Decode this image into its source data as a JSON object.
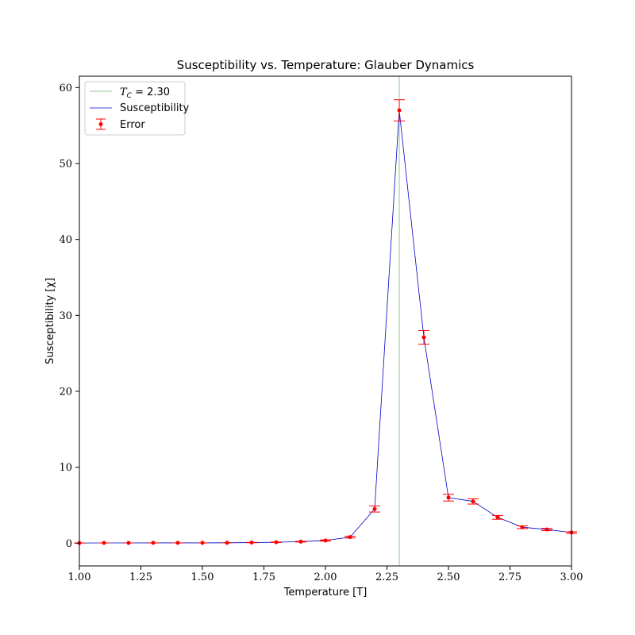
{
  "chart_data": {
    "type": "line",
    "title": "Susceptibility vs. Temperature: Glauber Dynamics",
    "xlabel": "Temperature [T]",
    "ylabel": "Susceptibility [χ]",
    "xlim": [
      1.0,
      3.0
    ],
    "ylim": [
      -3,
      61.5
    ],
    "xticks": [
      1.0,
      1.25,
      1.5,
      1.75,
      2.0,
      2.25,
      2.5,
      2.75,
      3.0
    ],
    "xtick_labels": [
      "1.00",
      "1.25",
      "1.50",
      "1.75",
      "2.00",
      "2.25",
      "2.50",
      "2.75",
      "3.00"
    ],
    "yticks": [
      0,
      10,
      20,
      30,
      40,
      50,
      60
    ],
    "ytick_labels": [
      "0",
      "10",
      "20",
      "30",
      "40",
      "50",
      "60"
    ],
    "grid": false,
    "legend_placement": "top-left",
    "legend": {
      "tc_prefix": "T",
      "tc_subscript": "C",
      "tc_value_text": " = 2.30",
      "susceptibility": "Susceptibility",
      "error": "Error"
    },
    "critical_temperature": 2.3,
    "x": [
      1.0,
      1.1,
      1.2,
      1.3,
      1.4,
      1.5,
      1.6,
      1.7,
      1.8,
      1.9,
      2.0,
      2.1,
      2.2,
      2.3,
      2.4,
      2.5,
      2.6,
      2.7,
      2.8,
      2.9,
      3.0
    ],
    "series": [
      {
        "name": "Susceptibility",
        "values": [
          0.02,
          0.03,
          0.03,
          0.04,
          0.04,
          0.04,
          0.05,
          0.08,
          0.12,
          0.2,
          0.35,
          0.8,
          4.5,
          57.0,
          27.1,
          6.0,
          5.5,
          3.4,
          2.1,
          1.8,
          1.4
        ]
      },
      {
        "name": "Error",
        "values": [
          0.02,
          0.03,
          0.03,
          0.04,
          0.04,
          0.04,
          0.05,
          0.08,
          0.12,
          0.2,
          0.35,
          0.8,
          4.5,
          57.0,
          27.1,
          6.0,
          5.5,
          3.4,
          2.1,
          1.8,
          1.4
        ],
        "errors": [
          0.0,
          0.0,
          0.0,
          0.0,
          0.0,
          0.0,
          0.0,
          0.02,
          0.03,
          0.05,
          0.08,
          0.12,
          0.4,
          1.4,
          0.9,
          0.45,
          0.35,
          0.25,
          0.18,
          0.15,
          0.1
        ]
      }
    ],
    "colors": {
      "line": "#0000cc",
      "error": "#ff0000",
      "tc_line": "#90c890",
      "axis": "#000000",
      "legend_border": "#cccccc"
    }
  }
}
